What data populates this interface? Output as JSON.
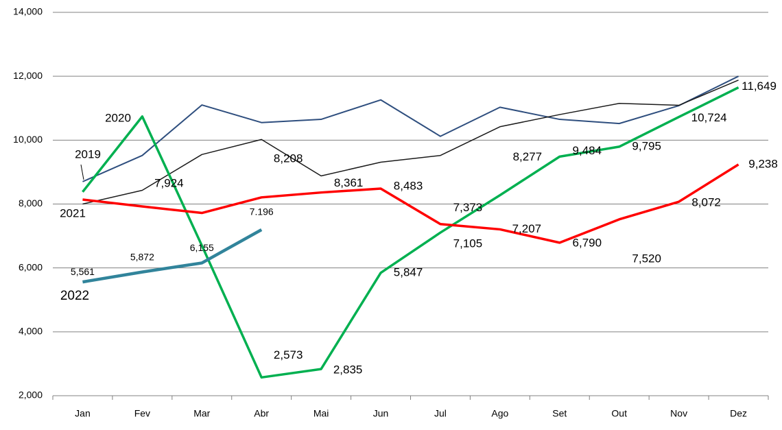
{
  "chart_data": {
    "type": "line",
    "categories": [
      "Jan",
      "Fev",
      "Mar",
      "Abr",
      "Mai",
      "Jun",
      "Jul",
      "Ago",
      "Set",
      "Out",
      "Nov",
      "Dez"
    ],
    "ylim": [
      2000,
      14000
    ],
    "yticks": [
      {
        "value": 2000,
        "label": "2,000"
      },
      {
        "value": 4000,
        "label": "4,000"
      },
      {
        "value": 6000,
        "label": "6,000"
      },
      {
        "value": 8000,
        "label": "8,000"
      },
      {
        "value": 10000,
        "label": "10,000"
      },
      {
        "value": 12000,
        "label": "12,000"
      },
      {
        "value": 14000,
        "label": "14,000"
      }
    ],
    "grid": true,
    "series": [
      {
        "name": "2019",
        "color": "#2e4e7e",
        "width": 2,
        "values": [
          8700,
          9520,
          11100,
          10550,
          10650,
          11260,
          10120,
          11030,
          10650,
          10520,
          11080,
          12000
        ]
      },
      {
        "color": "#1a1a1a",
        "width": 1.5,
        "values": [
          8000,
          8430,
          9550,
          10020,
          8880,
          9310,
          9520,
          10420,
          10800,
          11150,
          11090,
          11880
        ]
      },
      {
        "name": "2020",
        "color": "#00b050",
        "width": 3.5,
        "values": [
          8380,
          10740,
          6700,
          2573,
          2835,
          5847,
          7105,
          8277,
          9484,
          9795,
          10724,
          11649
        ],
        "value_labels": [
          null,
          null,
          null,
          "2,573",
          "2,835",
          "5,847",
          "7,105",
          "8,277",
          "9,484",
          "9,795",
          "10,724",
          "11,649"
        ]
      },
      {
        "name": "2021",
        "color": "#ff0000",
        "width": 3.5,
        "values": [
          8140,
          7924,
          7720,
          8208,
          8361,
          8483,
          7373,
          7207,
          6790,
          7520,
          8072,
          9238
        ],
        "value_labels": [
          null,
          "7,924",
          null,
          "8,208",
          "8,361",
          "8,483",
          "7,373",
          "7,207",
          "6,790",
          "7,520",
          "8,072",
          "9,238"
        ]
      },
      {
        "name": "2022",
        "color": "#31849b",
        "width": 4.5,
        "values": [
          5561,
          5872,
          6155,
          7196,
          null,
          null,
          null,
          null,
          null,
          null,
          null,
          null
        ],
        "value_labels": [
          "5,561",
          "5,872",
          "6,155",
          "7.196",
          null,
          null,
          null,
          null,
          null,
          null,
          null,
          null
        ]
      }
    ]
  }
}
